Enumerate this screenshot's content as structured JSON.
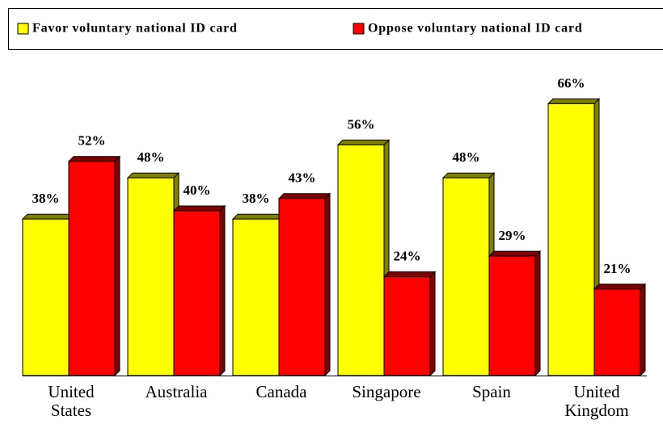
{
  "chart_data": {
    "type": "bar3d",
    "categories": [
      "United States",
      "Australia",
      "Canada",
      "Singapore",
      "Spain",
      "United Kingdom"
    ],
    "series": [
      {
        "name": "Favor voluntary national ID card",
        "color": "#ffff00",
        "values": [
          38,
          48,
          38,
          56,
          48,
          66
        ],
        "value_labels": [
          "38%",
          "48%",
          "38%",
          "56%",
          "48%",
          "66%"
        ]
      },
      {
        "name": "Oppose voluntary national ID card",
        "color": "#ff0000",
        "values": [
          52,
          40,
          43,
          24,
          29,
          21
        ],
        "value_labels": [
          "52%",
          "40%",
          "43%",
          "24%",
          "29%",
          "21%"
        ]
      }
    ],
    "legend": "top"
  }
}
